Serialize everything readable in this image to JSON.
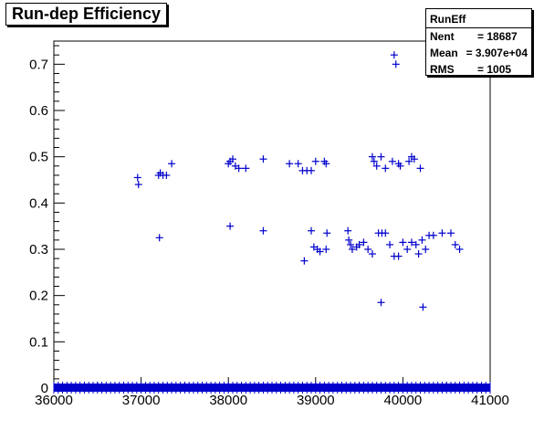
{
  "title": "Run-dep Efficiency",
  "stats": {
    "name": "RunEff",
    "rows": [
      {
        "label": "Nent",
        "value": "= 18687"
      },
      {
        "label": "Mean",
        "value": "= 3.907e+04"
      },
      {
        "label": "RMS",
        "value": "=    1005"
      }
    ]
  },
  "chart_data": {
    "type": "scatter",
    "xlim": [
      36000,
      41000
    ],
    "ylim": [
      0,
      0.75
    ],
    "x_ticks": [
      "36000",
      "37000",
      "38000",
      "39000",
      "40000",
      "41000"
    ],
    "y_ticks": [
      "0",
      "0.1",
      "0.2",
      "0.3",
      "0.4",
      "0.5",
      "0.6",
      "0.7"
    ],
    "marker_color": "#0000cc",
    "baseline_band": {
      "y": 0.0,
      "x_range": [
        36000,
        41000
      ]
    },
    "points": [
      [
        36960,
        0.455
      ],
      [
        36970,
        0.44
      ],
      [
        37200,
        0.46
      ],
      [
        37220,
        0.465
      ],
      [
        37250,
        0.46
      ],
      [
        37290,
        0.46
      ],
      [
        37350,
        0.485
      ],
      [
        37210,
        0.325
      ],
      [
        38000,
        0.485
      ],
      [
        38020,
        0.49
      ],
      [
        38050,
        0.495
      ],
      [
        38080,
        0.48
      ],
      [
        38120,
        0.475
      ],
      [
        38200,
        0.475
      ],
      [
        38020,
        0.35
      ],
      [
        38400,
        0.495
      ],
      [
        38400,
        0.34
      ],
      [
        38700,
        0.485
      ],
      [
        38800,
        0.485
      ],
      [
        38850,
        0.47
      ],
      [
        38900,
        0.47
      ],
      [
        38950,
        0.47
      ],
      [
        39000,
        0.49
      ],
      [
        39100,
        0.49
      ],
      [
        39120,
        0.485
      ],
      [
        38870,
        0.275
      ],
      [
        38950,
        0.34
      ],
      [
        38980,
        0.305
      ],
      [
        39020,
        0.3
      ],
      [
        39050,
        0.295
      ],
      [
        39120,
        0.3
      ],
      [
        39130,
        0.335
      ],
      [
        39370,
        0.34
      ],
      [
        39380,
        0.32
      ],
      [
        39400,
        0.31
      ],
      [
        39420,
        0.3
      ],
      [
        39470,
        0.305
      ],
      [
        39500,
        0.31
      ],
      [
        39550,
        0.315
      ],
      [
        39600,
        0.3
      ],
      [
        39650,
        0.29
      ],
      [
        39650,
        0.5
      ],
      [
        39670,
        0.49
      ],
      [
        39700,
        0.48
      ],
      [
        39750,
        0.5
      ],
      [
        39800,
        0.475
      ],
      [
        39880,
        0.49
      ],
      [
        39950,
        0.485
      ],
      [
        39970,
        0.48
      ],
      [
        40070,
        0.49
      ],
      [
        40100,
        0.5
      ],
      [
        40130,
        0.495
      ],
      [
        40200,
        0.475
      ],
      [
        39720,
        0.335
      ],
      [
        39760,
        0.335
      ],
      [
        39800,
        0.335
      ],
      [
        39850,
        0.31
      ],
      [
        39900,
        0.285
      ],
      [
        39950,
        0.285
      ],
      [
        40000,
        0.315
      ],
      [
        40050,
        0.3
      ],
      [
        40100,
        0.315
      ],
      [
        40150,
        0.31
      ],
      [
        40180,
        0.29
      ],
      [
        40220,
        0.32
      ],
      [
        40260,
        0.3
      ],
      [
        40300,
        0.33
      ],
      [
        40350,
        0.33
      ],
      [
        40450,
        0.335
      ],
      [
        40550,
        0.335
      ],
      [
        40600,
        0.31
      ],
      [
        40650,
        0.3
      ],
      [
        39900,
        0.72
      ],
      [
        39920,
        0.7
      ],
      [
        39750,
        0.185
      ],
      [
        40230,
        0.175
      ]
    ]
  }
}
